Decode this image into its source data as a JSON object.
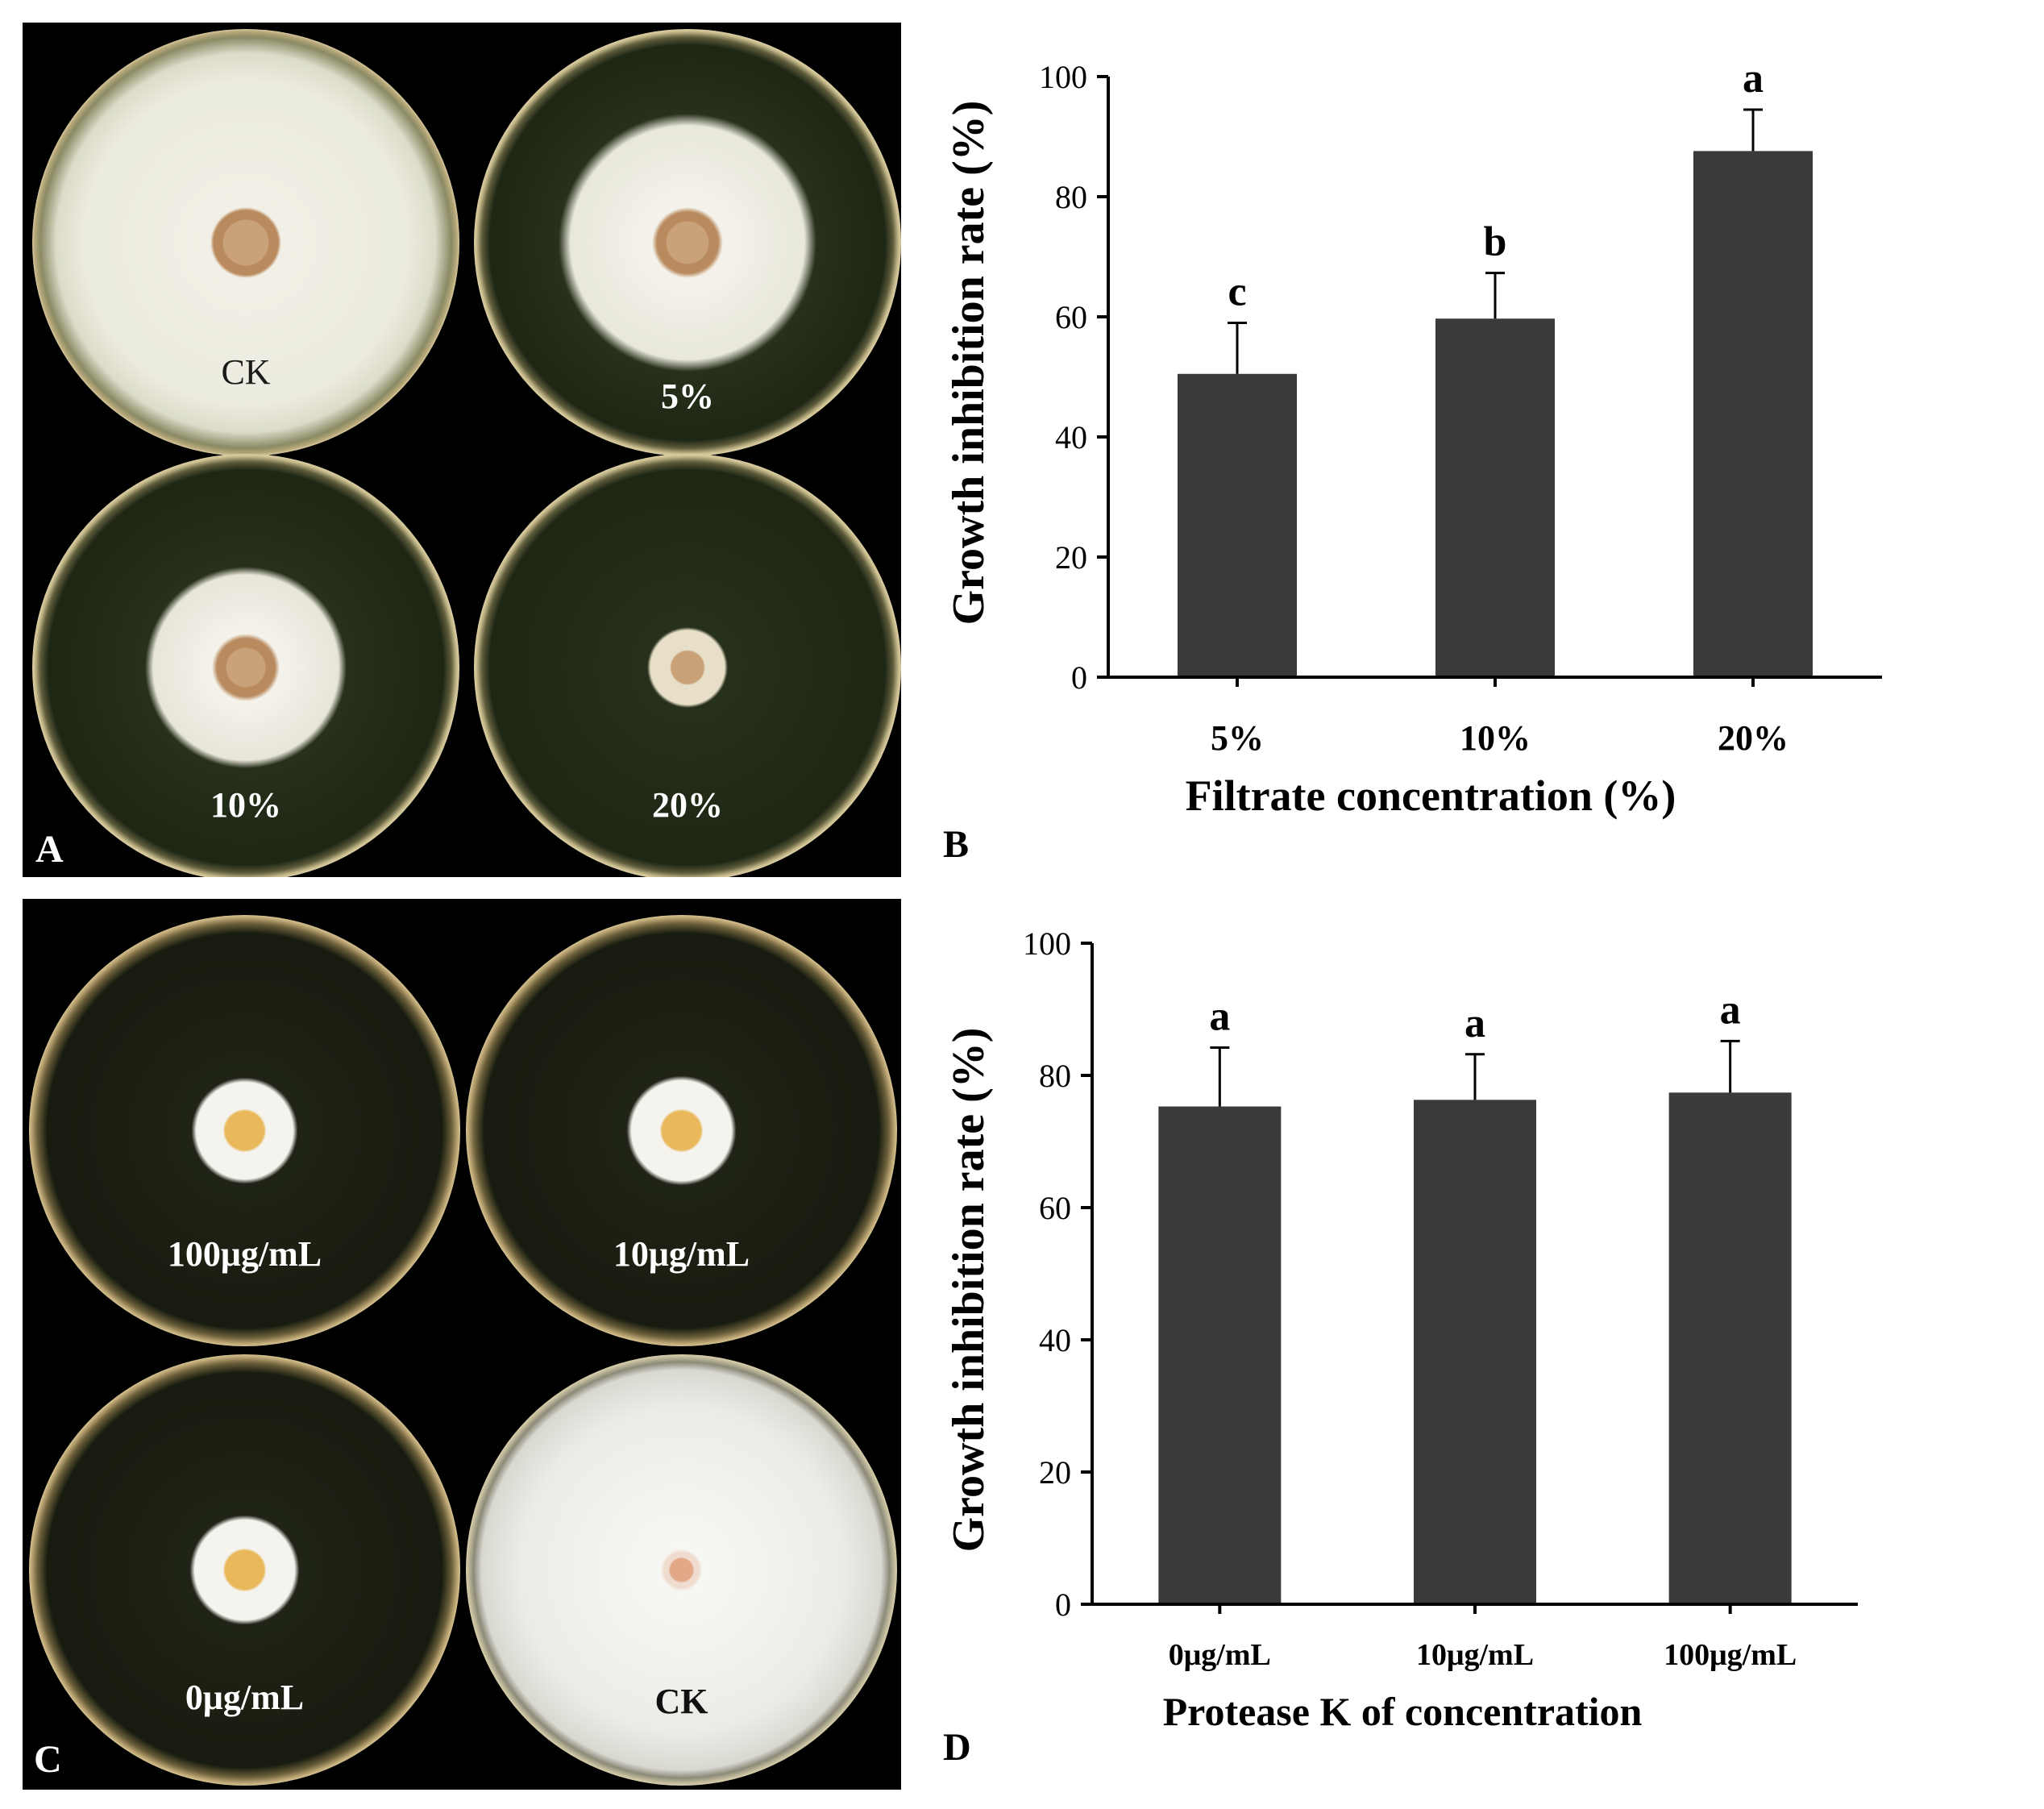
{
  "panels": {
    "a": {
      "letter": "A",
      "plates": [
        {
          "label": "CK"
        },
        {
          "label": "5%"
        },
        {
          "label": "10%"
        },
        {
          "label": "20%"
        }
      ]
    },
    "b": {
      "letter": "B"
    },
    "c": {
      "letter": "C",
      "plates": [
        {
          "label": "100μg/mL"
        },
        {
          "label": "10μg/mL"
        },
        {
          "label": "0μg/mL"
        },
        {
          "label": "CK"
        }
      ]
    },
    "d": {
      "letter": "D"
    }
  },
  "colors": {
    "bar": "#3a3a3a",
    "axis": "#000000"
  },
  "chart_data": [
    {
      "type": "bar",
      "panel": "B",
      "title": "",
      "xlabel": "Filtrate concentration (%)",
      "ylabel": "Growth inhibition rate (%)",
      "ylim": [
        0,
        100
      ],
      "yticks": [
        0,
        20,
        40,
        60,
        80,
        100
      ],
      "categories": [
        "5%",
        "10%",
        "20%"
      ],
      "values": [
        50.5,
        59.7,
        87.6
      ],
      "errors": [
        8.5,
        7.6,
        6.9
      ],
      "significance": [
        "c",
        "b",
        "a"
      ]
    },
    {
      "type": "bar",
      "panel": "D",
      "title": "",
      "xlabel": "Protease K of concentration",
      "ylabel": "Growth inhibition rate (%)",
      "ylim": [
        0,
        100
      ],
      "yticks": [
        0,
        20,
        40,
        60,
        80,
        100
      ],
      "categories": [
        "0μg/mL",
        "10μg/mL",
        "100μg/mL"
      ],
      "values": [
        75.3,
        76.3,
        77.4
      ],
      "errors": [
        8.9,
        6.9,
        7.8
      ],
      "significance": [
        "a",
        "a",
        "a"
      ]
    }
  ]
}
